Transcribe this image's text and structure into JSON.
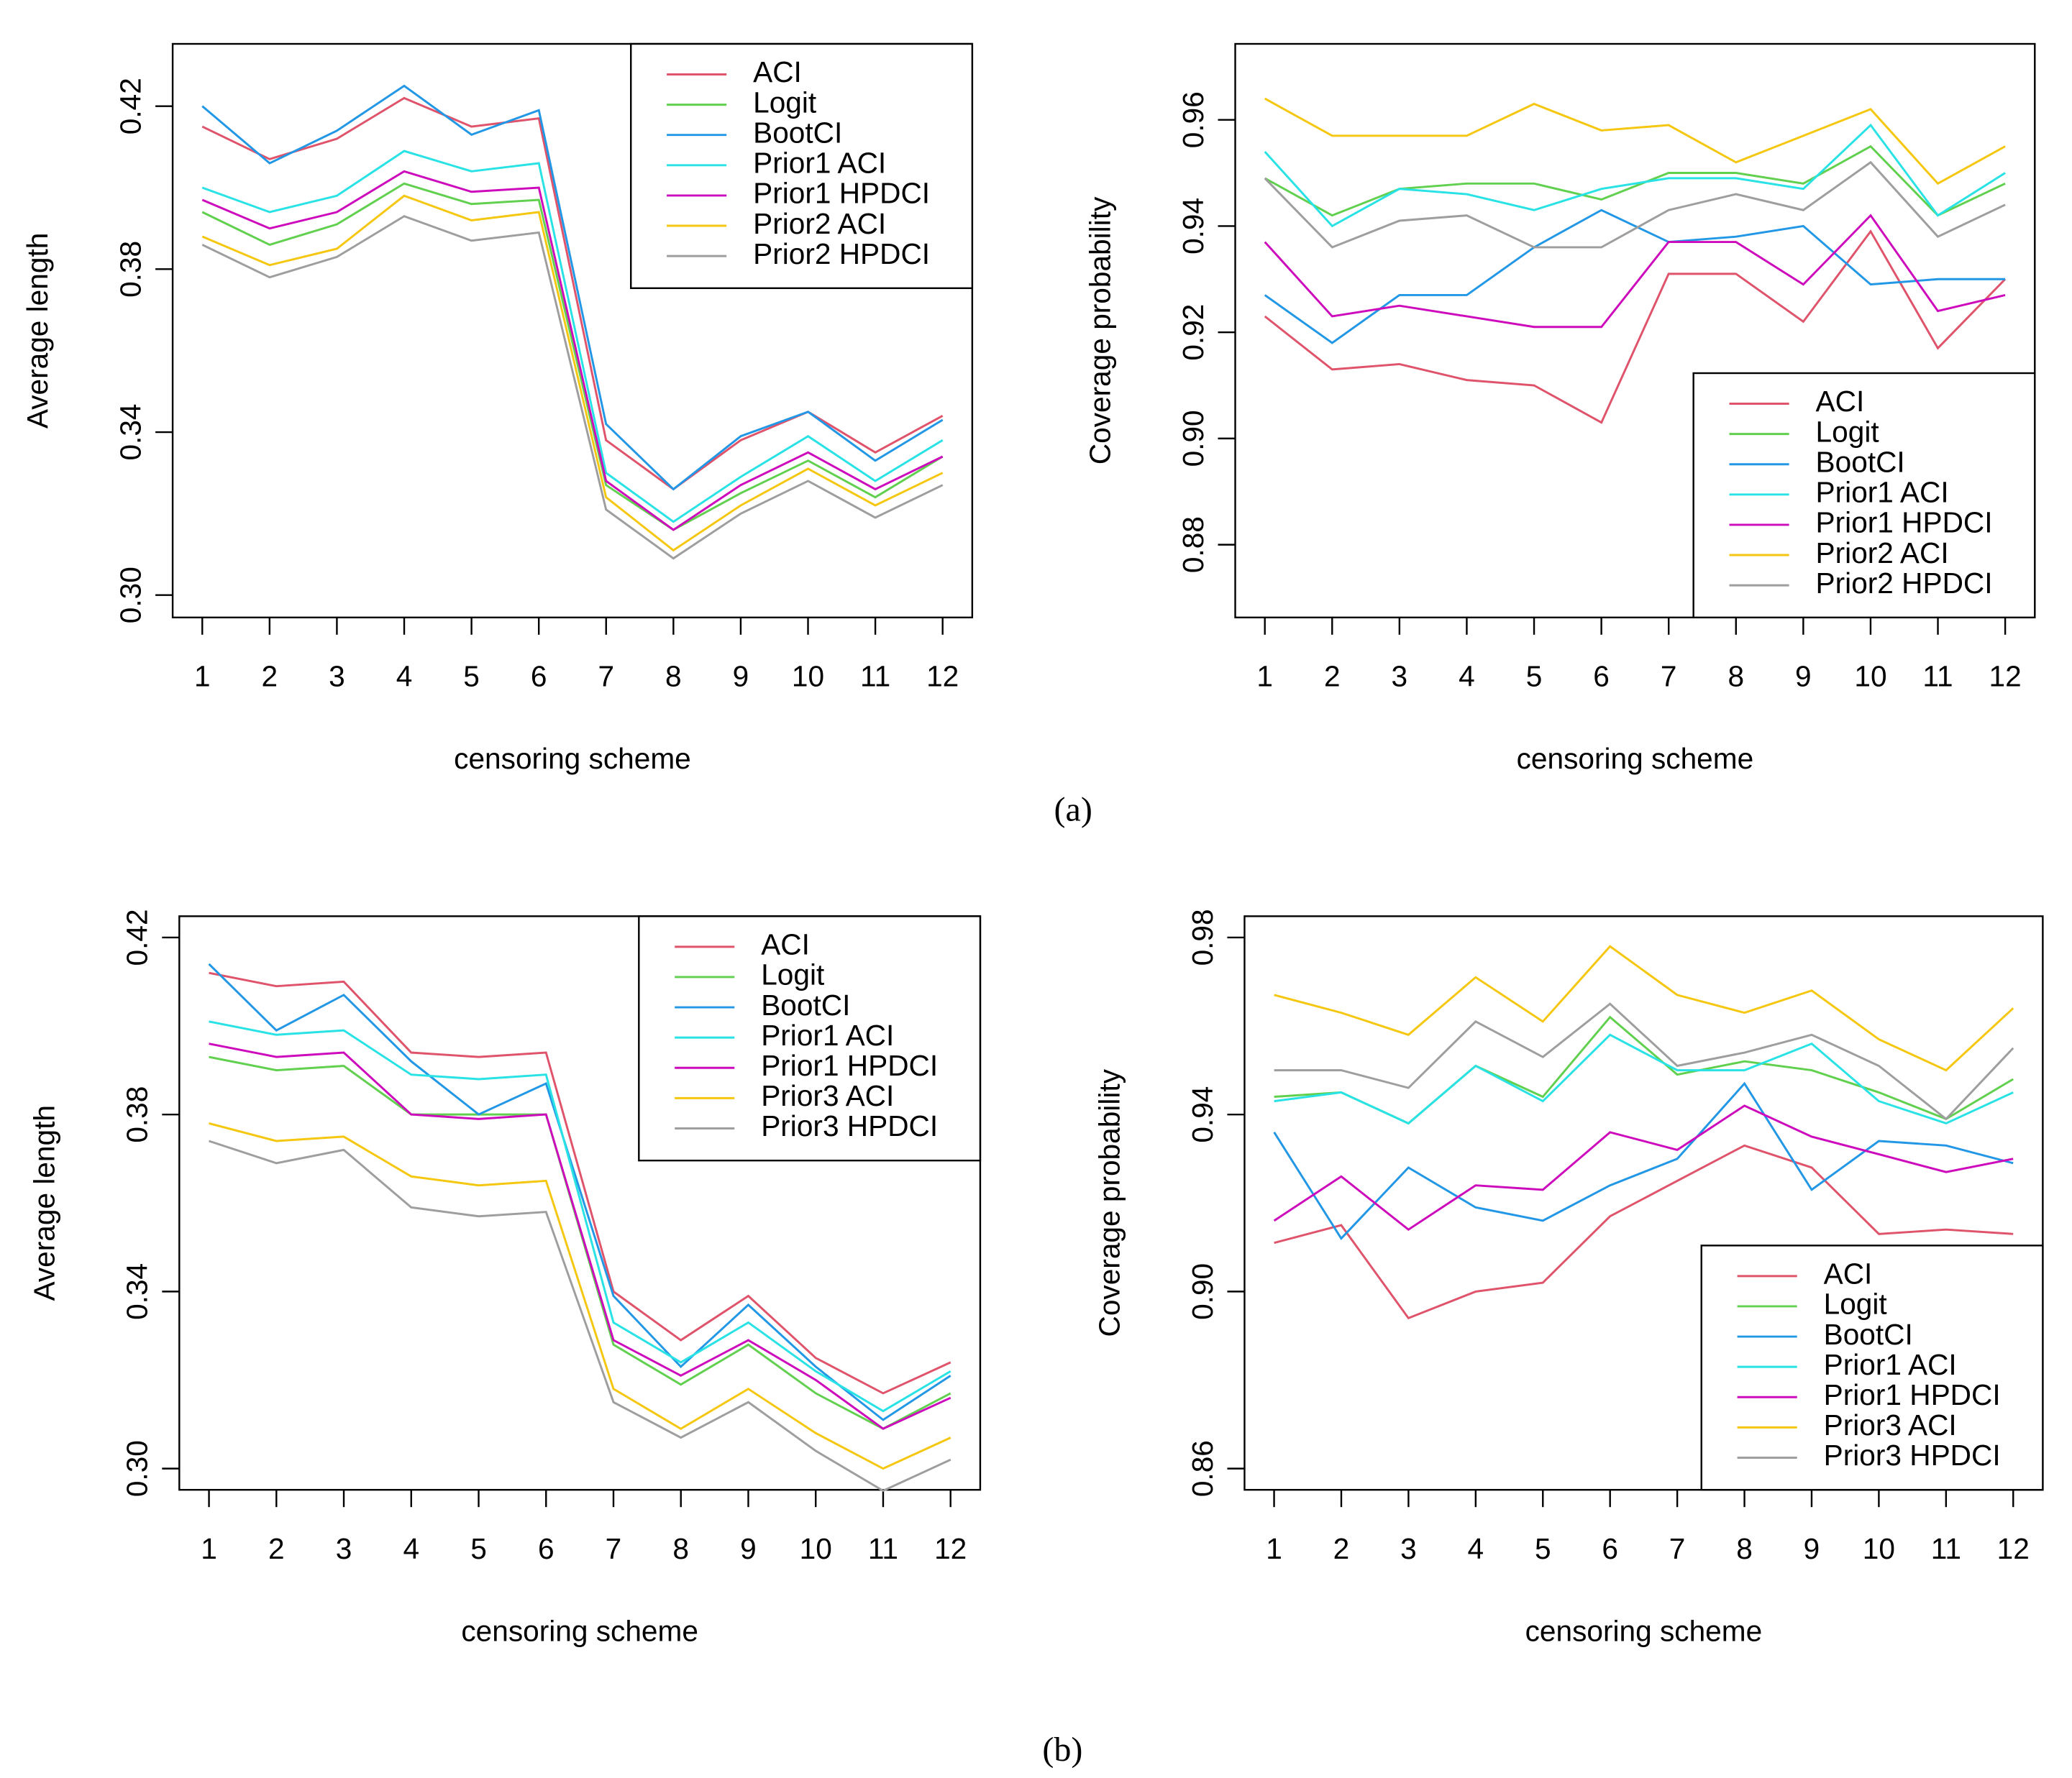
{
  "chart_data": [
    {
      "type": "line",
      "x_label": "censoring scheme",
      "y_label": "Average length",
      "x": [
        1,
        2,
        3,
        4,
        5,
        6,
        7,
        8,
        9,
        10,
        11,
        12
      ],
      "xlim": [
        0.56,
        12.44
      ],
      "xticks": [
        1,
        2,
        3,
        4,
        5,
        6,
        7,
        8,
        9,
        10,
        11,
        12
      ],
      "ylim": [
        0.2945,
        0.4353
      ],
      "yticks": [
        {
          "value": 0.3,
          "label": "0.30"
        },
        0.34,
        0.38,
        0.42
      ],
      "legend": "topright",
      "series": [
        {
          "name": "ACI",
          "color": "#df536b",
          "values": [
            0.415,
            0.407,
            0.412,
            0.422,
            0.415,
            0.417,
            0.338,
            0.326,
            0.338,
            0.345,
            0.335,
            0.344
          ]
        },
        {
          "name": "Logit",
          "color": "#61d04f",
          "values": [
            0.394,
            0.386,
            0.391,
            0.401,
            0.396,
            0.397,
            0.327,
            0.316,
            0.325,
            0.333,
            0.324,
            0.334
          ]
        },
        {
          "name": "BootCI",
          "color": "#2297e6",
          "values": [
            0.42,
            0.406,
            0.414,
            0.425,
            0.413,
            0.419,
            0.342,
            0.326,
            0.339,
            0.345,
            0.333,
            0.343
          ]
        },
        {
          "name": "Prior1 ACI",
          "color": "#28e2e5",
          "values": [
            0.4,
            0.394,
            0.398,
            0.409,
            0.404,
            0.406,
            0.33,
            0.318,
            0.329,
            0.339,
            0.328,
            0.338
          ]
        },
        {
          "name": "Prior1 HPDCI",
          "color": "#cd0bbc",
          "values": [
            0.397,
            0.39,
            0.394,
            0.404,
            0.399,
            0.4,
            0.328,
            0.316,
            0.327,
            0.335,
            0.326,
            0.334
          ]
        },
        {
          "name": "Prior2 ACI",
          "color": "#f5c710",
          "values": [
            0.388,
            0.381,
            0.385,
            0.398,
            0.392,
            0.394,
            0.324,
            0.311,
            0.322,
            0.331,
            0.322,
            0.33
          ]
        },
        {
          "name": "Prior2 HPDCI",
          "color": "#9e9e9e",
          "values": [
            0.386,
            0.378,
            0.383,
            0.393,
            0.387,
            0.389,
            0.321,
            0.309,
            0.32,
            0.328,
            0.319,
            0.327
          ]
        }
      ]
    },
    {
      "type": "line",
      "x_label": "censoring scheme",
      "y_label": "Coverage probability",
      "x": [
        1,
        2,
        3,
        4,
        5,
        6,
        7,
        8,
        9,
        10,
        11,
        12
      ],
      "xlim": [
        0.56,
        12.44
      ],
      "xticks": [
        1,
        2,
        3,
        4,
        5,
        6,
        7,
        8,
        9,
        10,
        11,
        12
      ],
      "ylim": [
        0.8663,
        0.9743
      ],
      "yticks": [
        0.88,
        {
          "value": 0.9,
          "label": "0.90"
        },
        0.92,
        0.94,
        0.96
      ],
      "legend": "bottomright",
      "series": [
        {
          "name": "ACI",
          "color": "#df536b",
          "values": [
            0.923,
            0.913,
            0.914,
            0.911,
            0.91,
            0.903,
            0.931,
            0.931,
            0.922,
            0.939,
            0.917,
            0.93
          ]
        },
        {
          "name": "Logit",
          "color": "#61d04f",
          "values": [
            0.949,
            0.942,
            0.947,
            0.948,
            0.948,
            0.945,
            0.95,
            0.95,
            0.948,
            0.955,
            0.942,
            0.948
          ]
        },
        {
          "name": "BootCI",
          "color": "#2297e6",
          "values": [
            0.927,
            0.918,
            0.927,
            0.927,
            0.936,
            0.943,
            0.937,
            0.938,
            0.94,
            0.929,
            0.93,
            0.93
          ]
        },
        {
          "name": "Prior1 ACI",
          "color": "#28e2e5",
          "values": [
            0.954,
            0.94,
            0.947,
            0.946,
            0.943,
            0.947,
            0.949,
            0.949,
            0.947,
            0.959,
            0.942,
            0.95
          ]
        },
        {
          "name": "Prior1 HPDCI",
          "color": "#cd0bbc",
          "values": [
            0.937,
            0.923,
            0.925,
            0.923,
            0.921,
            0.921,
            0.937,
            0.937,
            0.929,
            0.942,
            0.924,
            0.927
          ]
        },
        {
          "name": "Prior2 ACI",
          "color": "#f5c710",
          "values": [
            0.964,
            0.957,
            0.957,
            0.957,
            0.963,
            0.958,
            0.959,
            0.952,
            0.957,
            0.962,
            0.948,
            0.955
          ]
        },
        {
          "name": "Prior2 HPDCI",
          "color": "#9e9e9e",
          "values": [
            0.949,
            0.936,
            0.941,
            0.942,
            0.936,
            0.936,
            0.943,
            0.946,
            0.943,
            0.952,
            0.938,
            0.944
          ]
        }
      ]
    },
    {
      "type": "line",
      "x_label": "censoring scheme",
      "y_label": "Average length",
      "x": [
        1,
        2,
        3,
        4,
        5,
        6,
        7,
        8,
        9,
        10,
        11,
        12
      ],
      "xlim": [
        0.56,
        12.44
      ],
      "xticks": [
        1,
        2,
        3,
        4,
        5,
        6,
        7,
        8,
        9,
        10,
        11,
        12
      ],
      "ylim": [
        0.2952,
        0.4248
      ],
      "yticks": [
        {
          "value": 0.3,
          "label": "0.30"
        },
        0.34,
        0.38,
        0.42
      ],
      "legend": "topright",
      "series": [
        {
          "name": "ACI",
          "color": "#df536b",
          "values": [
            0.412,
            0.409,
            0.41,
            0.394,
            0.393,
            0.394,
            0.34,
            0.329,
            0.339,
            0.325,
            0.317,
            0.324
          ]
        },
        {
          "name": "Logit",
          "color": "#61d04f",
          "values": [
            0.393,
            0.39,
            0.391,
            0.38,
            0.38,
            0.38,
            0.328,
            0.319,
            0.328,
            0.317,
            0.309,
            0.317
          ]
        },
        {
          "name": "BootCI",
          "color": "#2297e6",
          "values": [
            0.414,
            0.399,
            0.407,
            0.392,
            0.38,
            0.387,
            0.339,
            0.323,
            0.337,
            0.323,
            0.311,
            0.321
          ]
        },
        {
          "name": "Prior1 ACI",
          "color": "#28e2e5",
          "values": [
            0.401,
            0.398,
            0.399,
            0.389,
            0.388,
            0.389,
            0.333,
            0.324,
            0.333,
            0.322,
            0.313,
            0.322
          ]
        },
        {
          "name": "Prior1 HPDCI",
          "color": "#cd0bbc",
          "values": [
            0.396,
            0.393,
            0.394,
            0.38,
            0.379,
            0.38,
            0.329,
            0.321,
            0.329,
            0.32,
            0.309,
            0.316
          ]
        },
        {
          "name": "Prior3 ACI",
          "color": "#f5c710",
          "values": [
            0.378,
            0.374,
            0.375,
            0.366,
            0.364,
            0.365,
            0.318,
            0.309,
            0.318,
            0.308,
            0.3,
            0.307
          ]
        },
        {
          "name": "Prior3 HPDCI",
          "color": "#9e9e9e",
          "values": [
            0.374,
            0.369,
            0.372,
            0.359,
            0.357,
            0.358,
            0.315,
            0.307,
            0.315,
            0.304,
            0.295,
            0.302
          ]
        }
      ]
    },
    {
      "type": "line",
      "x_label": "censoring scheme",
      "y_label": "Coverage probability",
      "x": [
        1,
        2,
        3,
        4,
        5,
        6,
        7,
        8,
        9,
        10,
        11,
        12
      ],
      "xlim": [
        0.56,
        12.44
      ],
      "xticks": [
        1,
        2,
        3,
        4,
        5,
        6,
        7,
        8,
        9,
        10,
        11,
        12
      ],
      "ylim": [
        0.8552,
        0.9848
      ],
      "yticks": [
        0.86,
        {
          "value": 0.9,
          "label": "0.90"
        },
        0.94,
        0.98
      ],
      "legend": "bottomright",
      "series": [
        {
          "name": "ACI",
          "color": "#df536b",
          "values": [
            0.911,
            0.915,
            0.894,
            0.9,
            0.902,
            0.917,
            0.925,
            0.933,
            0.928,
            0.913,
            0.914,
            0.913
          ]
        },
        {
          "name": "Logit",
          "color": "#61d04f",
          "values": [
            0.944,
            0.945,
            0.938,
            0.951,
            0.944,
            0.962,
            0.949,
            0.952,
            0.95,
            0.945,
            0.939,
            0.948
          ]
        },
        {
          "name": "BootCI",
          "color": "#2297e6",
          "values": [
            0.936,
            0.912,
            0.928,
            0.919,
            0.916,
            0.924,
            0.93,
            0.947,
            0.923,
            0.934,
            0.933,
            0.929
          ]
        },
        {
          "name": "Prior1 ACI",
          "color": "#28e2e5",
          "values": [
            0.943,
            0.945,
            0.938,
            0.951,
            0.943,
            0.958,
            0.95,
            0.95,
            0.956,
            0.943,
            0.938,
            0.945
          ]
        },
        {
          "name": "Prior1 HPDCI",
          "color": "#cd0bbc",
          "values": [
            0.916,
            0.926,
            0.914,
            0.924,
            0.923,
            0.936,
            0.932,
            0.942,
            0.935,
            0.931,
            0.927,
            0.93
          ]
        },
        {
          "name": "Prior3 ACI",
          "color": "#f5c710",
          "values": [
            0.967,
            0.963,
            0.958,
            0.971,
            0.961,
            0.978,
            0.967,
            0.963,
            0.968,
            0.957,
            0.95,
            0.964
          ]
        },
        {
          "name": "Prior3 HPDCI",
          "color": "#9e9e9e",
          "values": [
            0.95,
            0.95,
            0.946,
            0.961,
            0.953,
            0.965,
            0.951,
            0.954,
            0.958,
            0.951,
            0.939,
            0.955
          ]
        }
      ]
    }
  ],
  "captions": [
    "(a)",
    "(b)"
  ]
}
